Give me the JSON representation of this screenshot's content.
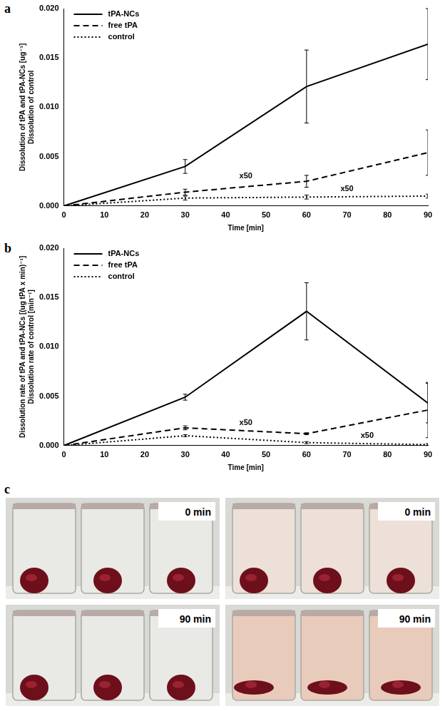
{
  "chart_data": [
    {
      "type": "line",
      "panel_label": "a",
      "x_label": "Time [min]",
      "y_label": [
        "Dissolution of tPA and tPA-NCs [ug⁻¹]",
        "Dissolution of control"
      ],
      "x": [
        0,
        30,
        60,
        90
      ],
      "xlim": [
        0,
        90
      ],
      "xticks": [
        0,
        10,
        20,
        30,
        40,
        50,
        60,
        70,
        80,
        90
      ],
      "ylim": [
        0,
        0.02
      ],
      "yticks": [
        {
          "value": 0,
          "label": "0.000"
        },
        {
          "value": 0.005,
          "label": "0.005"
        },
        {
          "value": 0.01,
          "label": "0.010"
        },
        {
          "value": 0.015,
          "label": "0.015"
        },
        {
          "value": 0.02,
          "label": "0.020"
        }
      ],
      "grid": false,
      "legend": "upper left",
      "series": [
        {
          "name": "tPA-NCs",
          "color": "#000000",
          "line_style": "solid",
          "marker": "none",
          "values": [
            0,
            0.004,
            0.0121,
            0.0164
          ],
          "errors": [
            0,
            0.0007,
            0.0037,
            0.0036
          ]
        },
        {
          "name": "free tPA",
          "color": "#000000",
          "line_style": "dashed",
          "marker": "none",
          "values": [
            0,
            0.0014,
            0.0025,
            0.0054
          ],
          "errors": [
            0,
            0.0003,
            0.0006,
            0.0023
          ]
        },
        {
          "name": "control",
          "color": "#000000",
          "line_style": "dotted",
          "marker": "none",
          "values": [
            0,
            0.0008,
            0.0009,
            0.001
          ],
          "errors": [
            0,
            0.0002,
            0.0002,
            0.0002
          ]
        }
      ],
      "annotations": [
        {
          "text": "x50",
          "x": 45,
          "y": 0.0026
        },
        {
          "text": "x50",
          "x": 70,
          "y": 0.0013
        }
      ]
    },
    {
      "type": "line",
      "panel_label": "b",
      "x_label": "Time [min]",
      "y_label": [
        "Dissolution rate of tPA and tPA-NCs [(ug tPA x min)⁻¹]",
        "Dissolution rate of control [min⁻¹]"
      ],
      "x": [
        0,
        30,
        60,
        90
      ],
      "xlim": [
        0,
        90
      ],
      "xticks": [
        0,
        10,
        20,
        30,
        40,
        50,
        60,
        70,
        80,
        90
      ],
      "ylim": [
        0,
        0.02
      ],
      "yticks": [
        {
          "value": 0,
          "label": "0.000"
        },
        {
          "value": 0.005,
          "label": "0.005"
        },
        {
          "value": 0.01,
          "label": "0.010"
        },
        {
          "value": 0.015,
          "label": "0.015"
        },
        {
          "value": 0.02,
          "label": "0.020"
        }
      ],
      "grid": false,
      "legend": "upper left",
      "series": [
        {
          "name": "tPA-NCs",
          "color": "#000000",
          "line_style": "solid",
          "marker": "none",
          "values": [
            0,
            0.0049,
            0.0136,
            0.0043
          ],
          "errors": [
            0,
            0.0003,
            0.0029,
            0.002
          ]
        },
        {
          "name": "free tPA",
          "color": "#000000",
          "line_style": "dashed",
          "marker": "none",
          "values": [
            0,
            0.0018,
            0.0012,
            0.0036
          ],
          "errors": [
            0,
            0.0002,
            0.0001,
            0.0028
          ]
        },
        {
          "name": "control",
          "color": "#000000",
          "line_style": "dotted",
          "marker": "none",
          "values": [
            0,
            0.001,
            0.0003,
            0.0001
          ],
          "errors": [
            0,
            0.0001,
            0.0001,
            0.0001
          ]
        }
      ],
      "annotations": [
        {
          "text": "x50",
          "x": 45,
          "y": 0.0019
        },
        {
          "text": "x50",
          "x": 75,
          "y": 0.0006
        }
      ]
    }
  ],
  "photo_panel": {
    "panel_label": "c",
    "photos": [
      {
        "time": "0 min"
      },
      {
        "time": "0 min"
      },
      {
        "time": "90 min"
      },
      {
        "time": "90 min"
      }
    ]
  }
}
